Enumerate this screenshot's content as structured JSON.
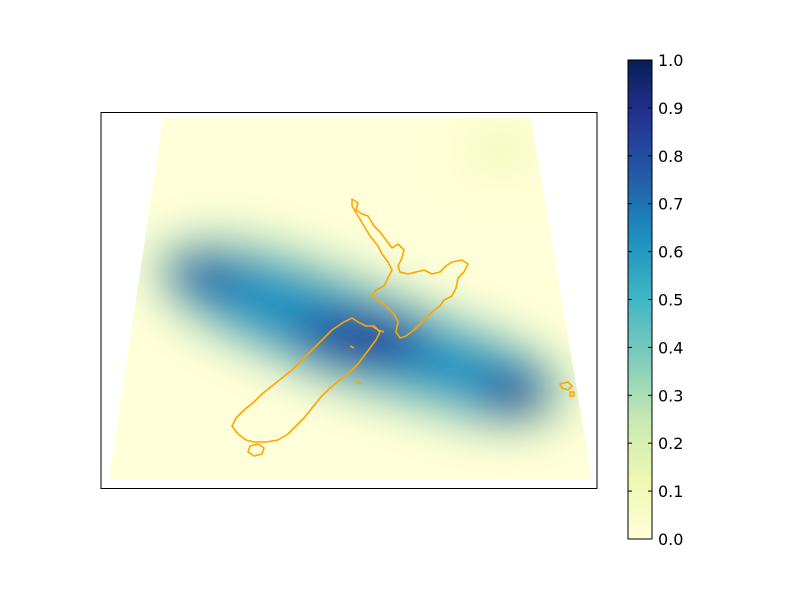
{
  "map": {
    "region": "New Zealand",
    "projection": "trapezoidal (conic-like) extent",
    "coastline_color": "#FFA500",
    "frame_color": "#000000",
    "axes_ticks": "none"
  },
  "colorbar": {
    "colormap": "YlGnBu",
    "min": 0.0,
    "max": 1.0,
    "tick_labels": [
      "0.0",
      "0.1",
      "0.2",
      "0.3",
      "0.4",
      "0.5",
      "0.6",
      "0.7",
      "0.8",
      "0.9",
      "1.0"
    ],
    "stops": [
      "#ffffd9",
      "#edf8b1",
      "#c7e9b4",
      "#7fcdbb",
      "#41b6c4",
      "#1d91c0",
      "#225ea8",
      "#253494",
      "#081d58"
    ]
  }
}
